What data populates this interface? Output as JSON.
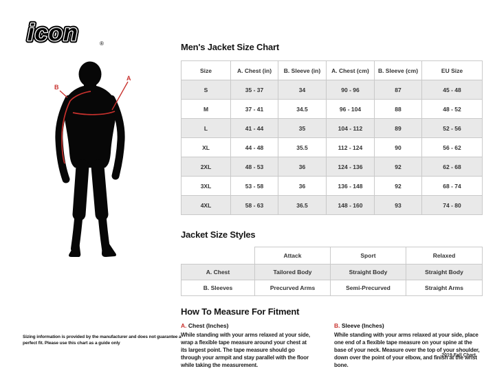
{
  "logo": {
    "text": "icon",
    "registered": "®"
  },
  "figure": {
    "label_a": "A",
    "label_b": "B"
  },
  "size_chart": {
    "title": "Men's Jacket Size Chart",
    "columns": [
      "Size",
      "A. Chest (in)",
      "B. Sleeve (in)",
      "A. Chest (cm)",
      "B. Sleeve (cm)",
      "EU Size"
    ],
    "rows": [
      [
        "S",
        "35 - 37",
        "34",
        "90 - 96",
        "87",
        "45 - 48"
      ],
      [
        "M",
        "37 - 41",
        "34.5",
        "96 - 104",
        "88",
        "48 - 52"
      ],
      [
        "L",
        "41 - 44",
        "35",
        "104 - 112",
        "89",
        "52 - 56"
      ],
      [
        "XL",
        "44 - 48",
        "35.5",
        "112 - 124",
        "90",
        "56 - 62"
      ],
      [
        "2XL",
        "48 - 53",
        "36",
        "124 - 136",
        "92",
        "62 - 68"
      ],
      [
        "3XL",
        "53 - 58",
        "36",
        "136 - 148",
        "92",
        "68 - 74"
      ],
      [
        "4XL",
        "58 - 63",
        "36.5",
        "148 - 160",
        "93",
        "74 - 80"
      ]
    ]
  },
  "style_chart": {
    "title": "Jacket Size Styles",
    "columns": [
      "",
      "Attack",
      "Sport",
      "Relaxed"
    ],
    "rows": [
      [
        "A. Chest",
        "Tailored Body",
        "Straight Body",
        "Straight Body"
      ],
      [
        "B. Sleeves",
        "Precurved Arms",
        "Semi-Precurved",
        "Straight Arms"
      ]
    ]
  },
  "how_to_measure": {
    "title": "How To Measure For Fitment",
    "chest": {
      "label_prefix": "A.",
      "label": "Chest (Inches)",
      "text": "While standing with your arms relaxed at your side, wrap a flexible tape measure around your chest at its largest point. The tape measure should go through your armpit and stay parallel with the floor while taking the measurement."
    },
    "sleeve": {
      "label_prefix": "B.",
      "label": "Sleeve (Inches)",
      "text": "While standing with your arms relaxed at your side, place one end of a flexible tape measure on your spine at the base of your neck. Measure over the top of your shoulder, down over the point of your elbow, and finish at the wrist bone."
    }
  },
  "footer": {
    "disclaimer": "Sizing information is provided by the manufacturer and does not guarantee a perfect fit. Please use this chart as a guide only",
    "chart_version": "2019 Fall Chart"
  },
  "colors": {
    "accent_red": "#c8312d",
    "row_alt": "#e9e9e9",
    "border": "#c9c9c9",
    "silhouette": "#070707"
  }
}
